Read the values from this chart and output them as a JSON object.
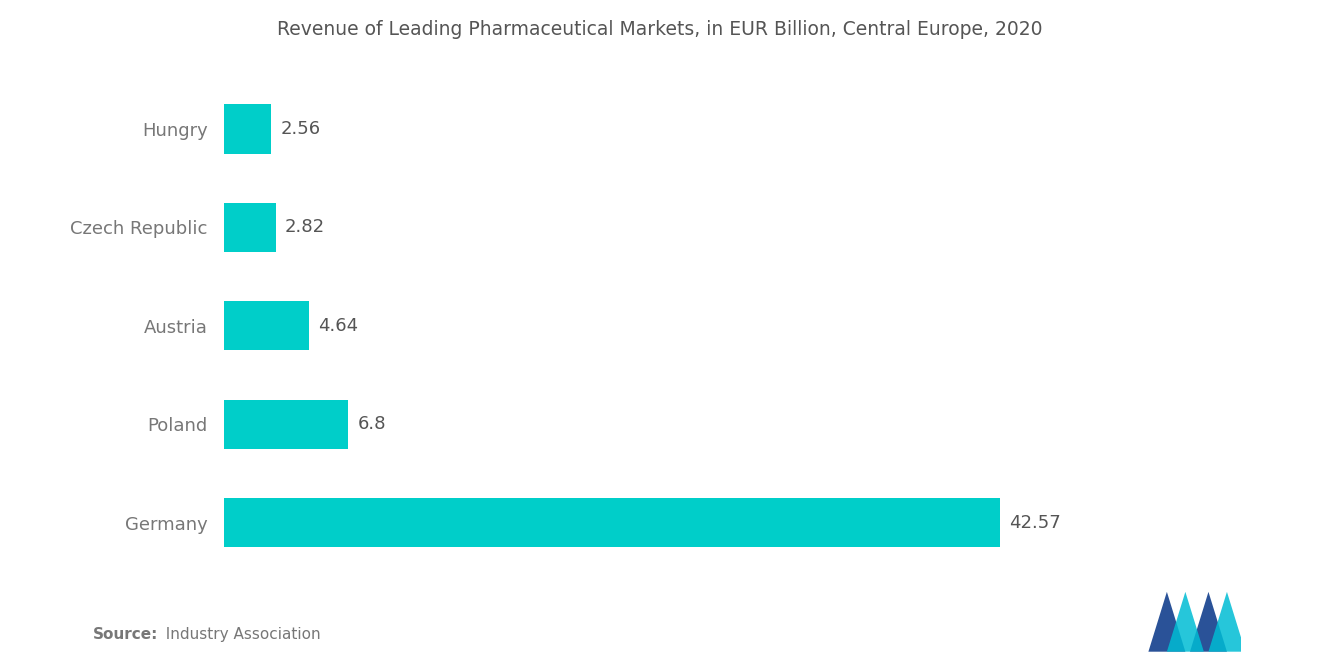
{
  "title": "Revenue of Leading Pharmaceutical Markets, in EUR Billion, Central Europe, 2020",
  "categories": [
    "Hungry",
    "Czech Republic",
    "Austria",
    "Poland",
    "Germany"
  ],
  "values": [
    2.56,
    2.82,
    4.64,
    6.8,
    42.57
  ],
  "bar_color": "#00CEC9",
  "label_color": "#777777",
  "title_color": "#555555",
  "value_color": "#555555",
  "background_color": "#ffffff",
  "source_bold": "Source:",
  "source_rest": "  Industry Association",
  "title_fontsize": 13.5,
  "label_fontsize": 13,
  "value_fontsize": 13,
  "source_fontsize": 11,
  "xlim": [
    0,
    50
  ],
  "bar_height": 0.5,
  "logo_dark": "#2a5298",
  "logo_cyan": "#00BCD4"
}
